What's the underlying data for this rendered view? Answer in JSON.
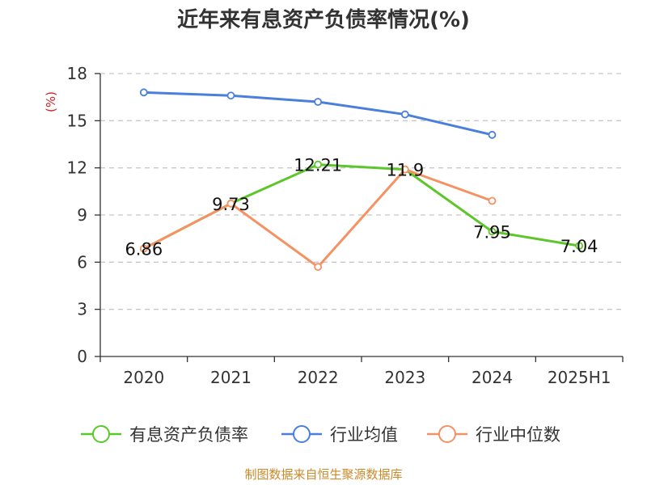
{
  "chart_data": {
    "type": "line",
    "title": "近年来有息资产负债率情况(%)",
    "unit_label": "(%)",
    "categories": [
      "2020",
      "2021",
      "2022",
      "2023",
      "2024",
      "2025H1"
    ],
    "ylim": [
      0,
      18
    ],
    "yticks": [
      0,
      3,
      6,
      9,
      12,
      15,
      18
    ],
    "grid": true,
    "legend_position": "bottom",
    "series": [
      {
        "name": "有息资产负债率",
        "color": "#5cc62a",
        "values": [
          6.86,
          9.73,
          12.21,
          11.9,
          7.95,
          7.04
        ],
        "labels": [
          "6.86",
          "9.73",
          "12.21",
          "11.9",
          "7.95",
          "7.04"
        ]
      },
      {
        "name": "行业均值",
        "color": "#4a7fdc",
        "values": [
          16.8,
          16.6,
          16.2,
          15.4,
          14.1,
          null
        ]
      },
      {
        "name": "行业中位数",
        "color": "#f59263",
        "values": [
          6.86,
          9.73,
          5.7,
          11.9,
          9.9,
          null
        ]
      }
    ]
  },
  "colors": {
    "unit": "#cc2222",
    "source": "#c98a2a",
    "grid": "#c8c8c8",
    "axis": "#333333"
  },
  "source_note": "制图数据来自恒生聚源数据库"
}
